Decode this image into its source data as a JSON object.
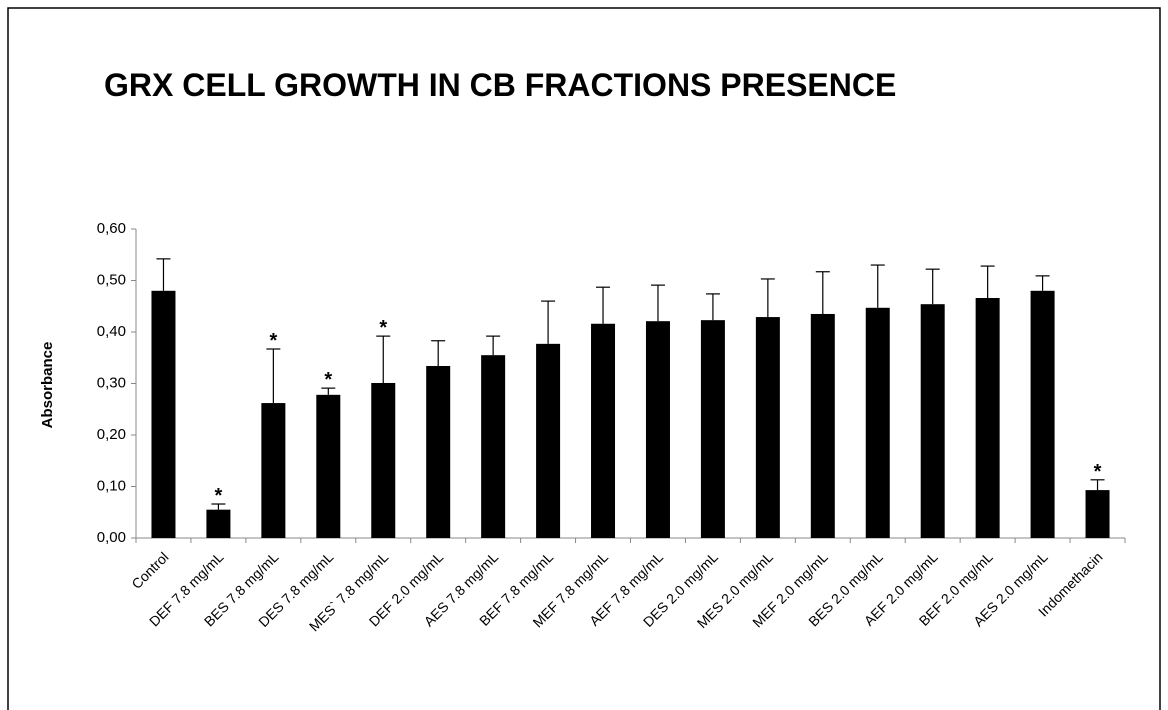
{
  "chart_data": {
    "type": "bar",
    "title": "GRX CELL GROWTH IN CB FRACTIONS PRESENCE",
    "ylabel": "Absorbance",
    "categories": [
      "Control",
      "DEF 7.8 mg/mL",
      "BES 7.8 mg/mL",
      "DES 7.8 mg/mL",
      "MES` 7.8 mg/mL",
      "DEF 2.0 mg/mL",
      "AES 7.8 mg/mL",
      "BEF 7.8 mg/mL",
      "MEF 7.8 mg/mL",
      "AEF 7.8 mg/mL",
      "DES 2.0 mg/mL",
      "MES 2.0 mg/mL",
      "MEF 2.0 mg/mL",
      "BES 2.0 mg/mL",
      "AEF 2.0 mg/mL",
      "BEF 2.0 mg/mL",
      "AES 2.0 mg/mL",
      "Indomethacin"
    ],
    "values": [
      0.48,
      0.055,
      0.262,
      0.278,
      0.301,
      0.334,
      0.355,
      0.377,
      0.416,
      0.421,
      0.423,
      0.429,
      0.435,
      0.447,
      0.454,
      0.466,
      0.48,
      0.093
    ],
    "errors": [
      0.062,
      0.011,
      0.105,
      0.013,
      0.091,
      0.049,
      0.037,
      0.083,
      0.071,
      0.07,
      0.051,
      0.074,
      0.082,
      0.083,
      0.068,
      0.062,
      0.029,
      0.02
    ],
    "color": "#000000",
    "annotations": [
      {
        "text": "*",
        "category": "DEF 7.8 mg/mL"
      },
      {
        "text": "*",
        "category": "BES 7.8 mg/mL"
      },
      {
        "text": "*",
        "category": "DES 7.8 mg/mL"
      },
      {
        "text": "*",
        "category": "MES` 7.8 mg/mL"
      },
      {
        "text": "*",
        "category": "Indomethacin"
      }
    ],
    "ylim": [
      0,
      0.6
    ],
    "yticks": [
      {
        "value": 0,
        "label": "0,00"
      },
      {
        "value": 0.1,
        "label": "0,10"
      },
      {
        "value": 0.2,
        "label": "0,20"
      },
      {
        "value": 0.3,
        "label": "0,30"
      },
      {
        "value": 0.4,
        "label": "0,40"
      },
      {
        "value": 0.5,
        "label": "0,50"
      },
      {
        "value": 0.6,
        "label": "0,60"
      }
    ],
    "grid": false
  }
}
